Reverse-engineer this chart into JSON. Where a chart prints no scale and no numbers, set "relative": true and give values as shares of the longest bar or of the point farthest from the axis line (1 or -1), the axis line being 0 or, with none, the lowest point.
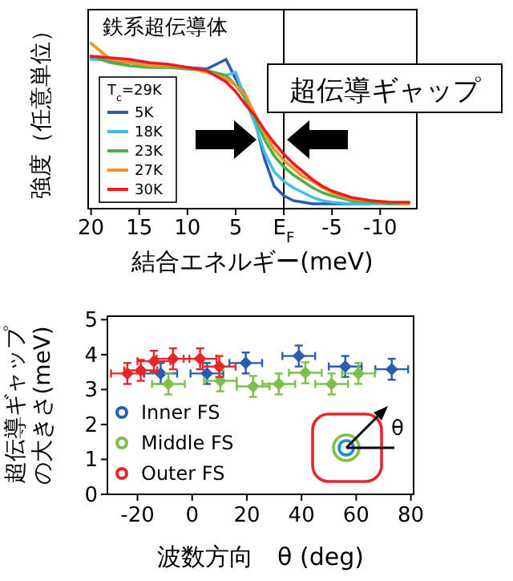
{
  "chart_data": [
    {
      "type": "line",
      "relative": true,
      "xlabel": "結合エネルギー(meV)",
      "ylabel": "強度（任意単位）",
      "xlim": [
        20.3,
        -13.8
      ],
      "xticks": [
        20,
        15,
        10,
        5,
        {
          "value": 0,
          "label": "E$_{F}$"
        },
        -5,
        -10
      ],
      "legend": "left",
      "legend_title": "T$_{c}$=29K",
      "annotations": [
        "鉄系超伝導体",
        "超伝導ギャップ"
      ],
      "ref_lines": [
        {
          "axis": "x",
          "value": 0,
          "color": "#000000"
        }
      ],
      "x": [
        20,
        18,
        16,
        14,
        12,
        10,
        8,
        6,
        5,
        4,
        3,
        2,
        1,
        0,
        -1,
        -2,
        -3,
        -4,
        -5,
        -7,
        -9,
        -11,
        -13
      ],
      "series": [
        {
          "name": "5K",
          "color": "#2a5db0",
          "values": [
            0.91,
            0.89,
            0.88,
            0.87,
            0.86,
            0.85,
            0.84,
            0.9,
            0.78,
            0.68,
            0.52,
            0.28,
            0.11,
            0.05,
            0.02,
            0.01,
            0,
            0,
            0,
            0,
            0,
            null,
            null
          ]
        },
        {
          "name": "18K",
          "color": "#45bde8",
          "values": [
            0.9,
            0.9,
            0.88,
            0.87,
            0.86,
            0.85,
            0.83,
            0.8,
            0.82,
            0.65,
            0.5,
            0.32,
            0.2,
            0.14,
            0.1,
            0.07,
            0.04,
            0.02,
            0.01,
            0,
            0,
            0,
            0
          ]
        },
        {
          "name": "23K",
          "color": "#4bb04a",
          "values": [
            0.92,
            0.88,
            0.86,
            0.85,
            0.85,
            0.84,
            0.83,
            0.8,
            0.74,
            0.66,
            0.54,
            0.4,
            0.3,
            0.23,
            0.18,
            0.14,
            0.1,
            0.07,
            0.05,
            0.02,
            0.01,
            0,
            0
          ]
        },
        {
          "name": "27K",
          "color": "#f7941d",
          "values": [
            1.0,
            0.9,
            0.88,
            0.86,
            0.86,
            0.85,
            0.82,
            0.78,
            0.74,
            0.68,
            0.56,
            0.44,
            0.34,
            0.27,
            0.22,
            0.17,
            0.14,
            0.1,
            0.07,
            0.03,
            0.02,
            0.01,
            0
          ]
        },
        {
          "name": "30K",
          "color": "#ed1c24",
          "values": [
            0.92,
            0.91,
            0.9,
            0.88,
            0.87,
            0.85,
            0.83,
            0.76,
            0.7,
            0.62,
            0.55,
            0.46,
            0.38,
            0.31,
            0.25,
            0.2,
            0.15,
            0.11,
            0.08,
            0.04,
            0.02,
            0.01,
            0.01
          ]
        }
      ]
    },
    {
      "type": "scatter",
      "xlabel": "波数方向　θ (deg)",
      "ylabel": "超伝導ギャップの大きさ(meV)",
      "xlim": [
        -31,
        81
      ],
      "xticks": [
        -20,
        0,
        20,
        40,
        60,
        80
      ],
      "ylim": [
        0,
        5.1
      ],
      "yticks": [
        0,
        1,
        2,
        3,
        4,
        5
      ],
      "legend": "bottom left",
      "marker": "diamond",
      "annotations": [
        "θ"
      ],
      "series": [
        {
          "name": "Inner FS",
          "color": "#2a5db0",
          "x": [
            -11.5,
            5.4,
            19.6,
            39,
            56,
            73
          ],
          "values": [
            3.46,
            3.46,
            3.76,
            3.96,
            3.66,
            3.58
          ],
          "errors": [
            0.3,
            0.3,
            0.3,
            0.3,
            0.3,
            0.3
          ],
          "xerrors": [
            6,
            6,
            6,
            6,
            6,
            6
          ]
        },
        {
          "name": "Middle FS",
          "color": "#7cc04a",
          "x": [
            -8.7,
            10.3,
            22.3,
            31.7,
            41.4,
            51,
            60.8
          ],
          "values": [
            3.16,
            3.25,
            3.09,
            3.16,
            3.48,
            3.16,
            3.46
          ],
          "errors": [
            0.3,
            0.3,
            0.3,
            0.3,
            0.3,
            0.3,
            0.3
          ],
          "xerrors": [
            6,
            6,
            6,
            6,
            6,
            6,
            6
          ]
        },
        {
          "name": "Outer FS",
          "color": "#e8262a",
          "x": [
            -23.7,
            -18.8,
            -14,
            -7,
            2.9,
            9.9
          ],
          "values": [
            3.46,
            3.55,
            3.81,
            3.88,
            3.88,
            3.66
          ],
          "errors": [
            0.3,
            0.3,
            0.3,
            0.3,
            0.3,
            0.3
          ],
          "xerrors": [
            6,
            6,
            6,
            6,
            6,
            6
          ]
        }
      ]
    }
  ]
}
